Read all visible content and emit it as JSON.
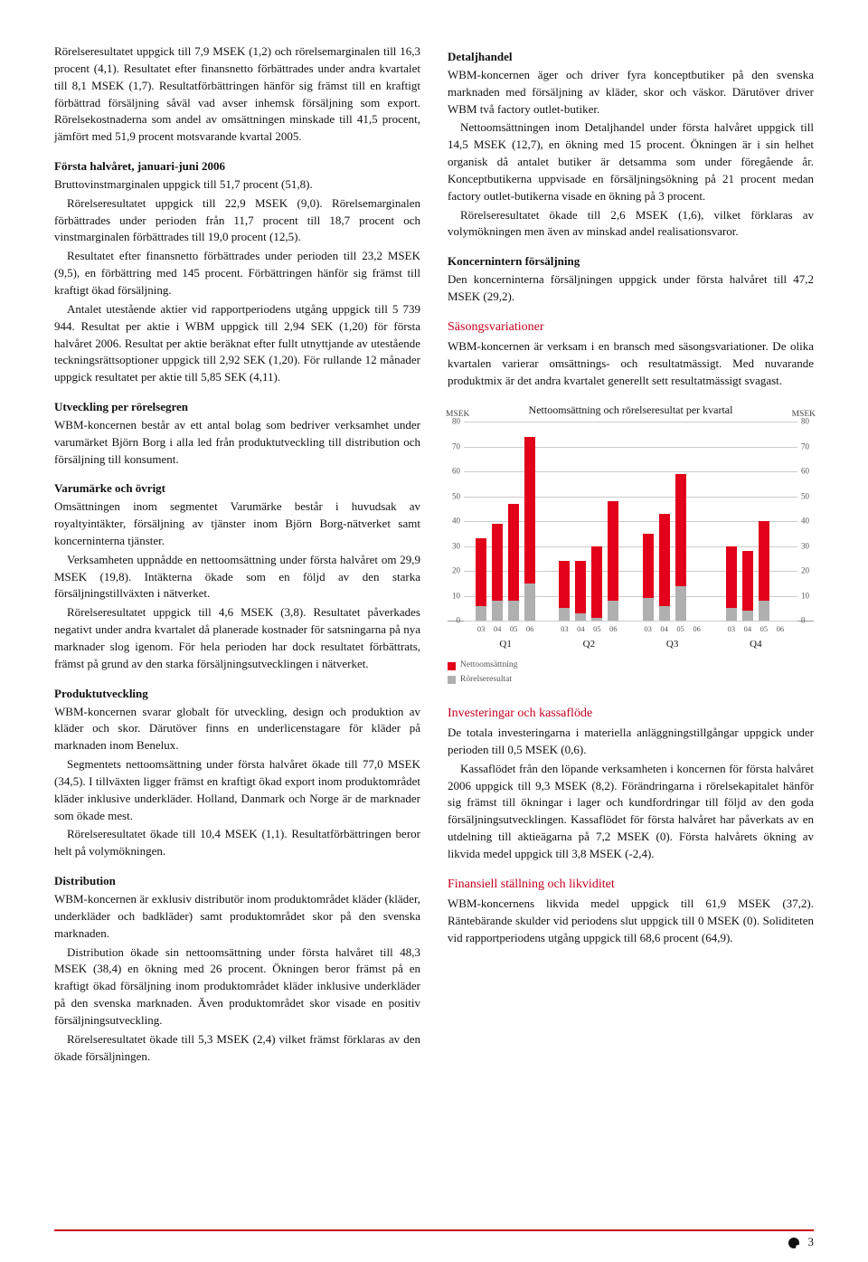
{
  "leftCol": {
    "p1": "Rörelseresultatet uppgick till 7,9 MSEK (1,2) och rörelsemarginalen till 16,3 procent (4,1). Resultatet efter finansnetto förbättrades under andra kvartalet till 8,1 MSEK (1,7). Resultatförbättringen hänför sig främst till en kraftigt förbättrad försäljning såväl vad avser inhemsk försäljning som export. Rörelsekostnaderna som andel av omsättningen minskade till 41,5 procent, jämfört med 51,9 procent motsvarande kvartal 2005.",
    "h1": "Första halvåret, januari-juni 2006",
    "p2": "Bruttovinstmarginalen uppgick till 51,7 procent (51,8).",
    "p3": "Rörelseresultatet uppgick till 22,9 MSEK (9,0). Rörelsemarginalen förbättrades under perioden från 11,7 procent till 18,7 procent och vinstmarginalen förbättrades till 19,0 procent (12,5).",
    "p4": "Resultatet efter finansnetto förbättrades under perioden till 23,2 MSEK (9,5), en förbättring med 145 procent. Förbättringen hänför sig främst till kraftigt ökad försäljning.",
    "p5": "Antalet utestående aktier vid rapportperiodens utgång uppgick till 5 739 944. Resultat per aktie i WBM uppgick till 2,94 SEK (1,20) för första halvåret 2006. Resultat per aktie beräknat efter fullt utnyttjande av utestående teckningsrättsoptioner uppgick till 2,92 SEK (1,20). För rullande 12 månader uppgick resultatet per aktie till 5,85 SEK (4,11).",
    "h2": "Utveckling per rörelsegren",
    "p6": "WBM-koncernen består av ett antal bolag som bedriver verksamhet under varumärket Björn Borg i alla led från produktutveckling till distribution och försäljning till konsument.",
    "h3": "Varumärke och övrigt",
    "p7": "Omsättningen inom segmentet Varumärke består i huvudsak av royaltyintäkter, försäljning av tjänster inom Björn Borg-nätverket samt koncerninterna tjänster.",
    "p8": "Verksamheten uppnådde en nettoomsättning under första halvåret om 29,9 MSEK (19,8). Intäkterna ökade som en följd av den starka försäljningstillväxten i nätverket.",
    "p9": "Rörelseresultatet uppgick till 4,6 MSEK (3,8). Resultatet påverkades negativt under andra kvartalet då planerade kostnader för satsningarna på nya marknader slog igenom. För hela perioden har dock resultatet förbättrats, främst på grund av den starka försäljningsutvecklingen i nätverket.",
    "h4": "Produktutveckling",
    "p10": "WBM-koncernen svarar globalt för utveckling, design och produktion av kläder och skor. Därutöver finns en underlicenstagare för kläder på marknaden inom Benelux.",
    "p11": "Segmentets nettoomsättning under första halvåret ökade till 77,0 MSEK (34,5). I tillväxten ligger främst en kraftigt ökad export inom produktområdet kläder inklusive underkläder. Holland, Danmark och Norge är de marknader som ökade mest.",
    "p12": "Rörelseresultatet ökade till 10,4 MSEK (1,1). Resultatförbättringen beror helt på volymökningen.",
    "h5": "Distribution",
    "p13": "WBM-koncernen är exklusiv distributör inom produktområdet kläder (kläder, underkläder och badkläder) samt produktområdet skor på den svenska marknaden.",
    "p14": "Distribution ökade sin nettoomsättning under första halvåret till 48,3 MSEK (38,4) en ökning med 26 procent. Ökningen beror främst på en kraftigt ökad försäljning inom produktområdet kläder inklusive underkläder på den svenska marknaden. Även produktområdet skor visade en positiv försäljningsutveckling.",
    "p15": "Rörelseresultatet ökade till 5,3 MSEK (2,4) vilket främst förklaras av den ökade försäljningen."
  },
  "rightCol": {
    "h1": "Detaljhandel",
    "p1": "WBM-koncernen äger och driver fyra konceptbutiker på den svenska marknaden med försäljning av kläder, skor och väskor. Därutöver driver WBM två factory outlet-butiker.",
    "p2": "Nettoomsättningen inom Detaljhandel under första halvåret uppgick till 14,5 MSEK (12,7), en ökning med 15 procent. Ökningen är i sin helhet organisk då antalet butiker är detsamma som under föregående år. Konceptbutikerna uppvisade en försäljningsökning på 21 procent medan factory outlet-butikerna visade en ökning på 3 procent.",
    "p3": "Rörelseresultatet ökade till 2,6 MSEK (1,6), vilket förklaras av volymökningen men även av minskad andel realisationsvaror.",
    "h2": "Koncernintern försäljning",
    "p4": "Den koncerninterna försäljningen uppgick under första halvåret till 47,2 MSEK (29,2).",
    "h3": "Säsongsvariationer",
    "p5": "WBM-koncernen är verksam i en bransch med säsongsvariationer. De olika kvartalen varierar omsättnings- och resultatmässigt. Med nuvarande produktmix är det andra kvartalet generellt sett resultatmässigt svagast.",
    "h4": "Investeringar och kassaflöde",
    "p6": "De totala investeringarna i materiella anläggningstillgångar uppgick under perioden till 0,5 MSEK (0,6).",
    "p7": "Kassaflödet från den löpande verksamheten i koncernen för första halvåret 2006 uppgick till 9,3 MSEK (8,2). Förändringarna i rörelsekapitalet hänför sig främst till ökningar i lager och kundfordringar till följd av den goda försäljningsutvecklingen. Kassaflödet för första halvåret har påverkats av en utdelning till aktieägarna på 7,2 MSEK (0). Första halvårets ökning av likvida medel uppgick till 3,8 MSEK (-2,4).",
    "h5": "Finansiell ställning och likviditet",
    "p8": "WBM-koncernens likvida medel uppgick till 61,9 MSEK (37,2). Räntebärande skulder vid periodens slut uppgick till 0 MSEK (0). Soliditeten vid rapportperiodens utgång uppgick till 68,6 procent (64,9)."
  },
  "chart": {
    "title": "Nettoomsättning och rörelseresultat per kvartal",
    "yAxisLabel": "MSEK",
    "ymax": 80,
    "yticks": [
      0,
      10,
      20,
      30,
      40,
      50,
      60,
      70,
      80
    ],
    "colors": {
      "net": "#e2001a",
      "res": "#b0b0b0",
      "grid": "#cccccc"
    },
    "groups": [
      {
        "label": "Q1",
        "years": [
          "03",
          "04",
          "05",
          "06"
        ],
        "net": [
          33,
          39,
          47,
          74
        ],
        "res": [
          6,
          8,
          8,
          15
        ]
      },
      {
        "label": "Q2",
        "years": [
          "03",
          "04",
          "05",
          "06"
        ],
        "net": [
          24,
          24,
          30,
          48
        ],
        "res": [
          5,
          3,
          1,
          8
        ]
      },
      {
        "label": "Q3",
        "years": [
          "03",
          "04",
          "05",
          "06"
        ],
        "net": [
          35,
          43,
          59,
          0
        ],
        "res": [
          9,
          6,
          14,
          0
        ]
      },
      {
        "label": "Q4",
        "years": [
          "03",
          "04",
          "05",
          "06"
        ],
        "net": [
          30,
          28,
          40,
          0
        ],
        "res": [
          5,
          4,
          8,
          0
        ]
      }
    ],
    "legend": [
      {
        "label": "Nettoomsättning",
        "color": "#e2001a"
      },
      {
        "label": "Rörelseresultat",
        "color": "#b0b0b0"
      }
    ]
  },
  "pageNumber": "3"
}
